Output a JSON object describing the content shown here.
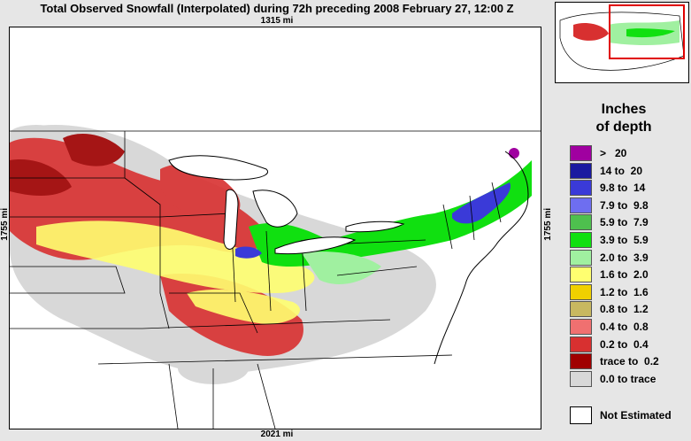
{
  "title": "Total Observed Snowfall (Interpolated) during 72h preceding 2008 February 27, 12:00 Z",
  "map": {
    "dim_top": "1315 mi",
    "dim_bottom": "2021 mi",
    "dim_left": "1755 mi",
    "dim_right": "1755 mi"
  },
  "legend": {
    "title_line1": "Inches",
    "title_line2": "of depth",
    "items": [
      {
        "label": ">   20",
        "color": "#a000a0"
      },
      {
        "label": "14 to  20",
        "color": "#1a1aa0"
      },
      {
        "label": "9.8 to  14",
        "color": "#3a3ad8"
      },
      {
        "label": "7.9 to  9.8",
        "color": "#6e6ef0"
      },
      {
        "label": "5.9 to  7.9",
        "color": "#4ec04e"
      },
      {
        "label": "3.9 to  5.9",
        "color": "#10e010"
      },
      {
        "label": "2.0 to  3.9",
        "color": "#a0f0a0"
      },
      {
        "label": "1.6 to  2.0",
        "color": "#ffff70"
      },
      {
        "label": "1.2 to  1.6",
        "color": "#f0d000"
      },
      {
        "label": "0.8 to  1.2",
        "color": "#c8b860"
      },
      {
        "label": "0.4 to  0.8",
        "color": "#f07070"
      },
      {
        "label": "0.2 to  0.4",
        "color": "#d83030"
      },
      {
        "label": "trace to  0.2",
        "color": "#a00000"
      },
      {
        "label": "0.0 to trace",
        "color": "#d8d8d8"
      }
    ],
    "not_estimated": "Not Estimated"
  },
  "colors": {
    "background": "#e6e6e6",
    "inset_highlight": "#e00000"
  }
}
